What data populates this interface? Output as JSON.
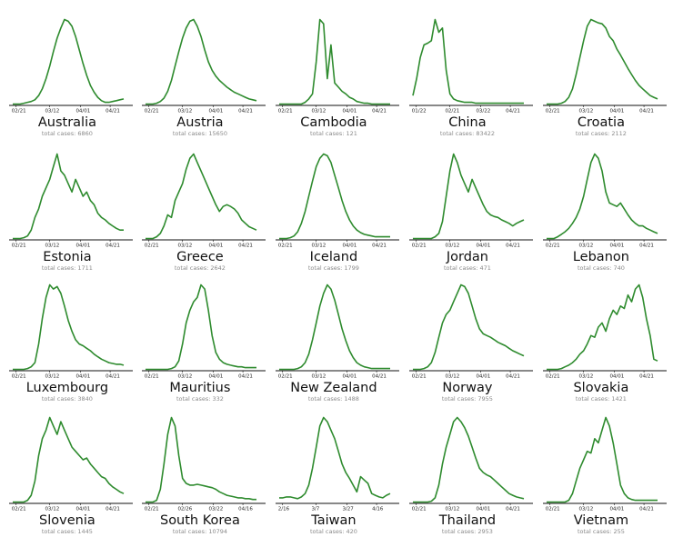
{
  "chart_data": [
    {
      "type": "line",
      "title": "Australia",
      "subtitle": "total cases: 6860",
      "x_ticks": [
        "02/21",
        "03/12",
        "04/01",
        "04/21"
      ],
      "series": [
        {
          "values": [
            0,
            0,
            0,
            1,
            2,
            3,
            5,
            10,
            18,
            30,
            45,
            62,
            78,
            90,
            100,
            98,
            92,
            80,
            64,
            48,
            34,
            22,
            14,
            8,
            4,
            2,
            2,
            3,
            4,
            5,
            6
          ]
        }
      ],
      "color": "#2e8b2e"
    },
    {
      "type": "line",
      "title": "Austria",
      "subtitle": "total cases: 15650",
      "x_ticks": [
        "02/21",
        "03/12",
        "04/01",
        "04/21"
      ],
      "series": [
        {
          "values": [
            0,
            0,
            0,
            1,
            3,
            7,
            15,
            28,
            45,
            62,
            78,
            90,
            98,
            100,
            92,
            80,
            64,
            50,
            40,
            33,
            28,
            24,
            20,
            17,
            14,
            12,
            10,
            8,
            6,
            5,
            4
          ]
        }
      ],
      "color": "#2e8b2e"
    },
    {
      "type": "line",
      "title": "Cambodia",
      "subtitle": "total cases: 121",
      "x_ticks": [
        "02/21",
        "03/12",
        "04/01",
        "04/21"
      ],
      "series": [
        {
          "values": [
            0,
            0,
            0,
            0,
            0,
            0,
            0,
            2,
            6,
            12,
            50,
            100,
            95,
            30,
            70,
            25,
            20,
            15,
            12,
            8,
            6,
            3,
            2,
            1,
            1,
            0,
            0,
            0,
            0,
            0,
            0
          ]
        }
      ],
      "color": "#2e8b2e"
    },
    {
      "type": "line",
      "title": "China",
      "subtitle": "total cases: 83422",
      "x_ticks": [
        "01/22",
        "02/21",
        "03/22",
        "04/21"
      ],
      "series": [
        {
          "values": [
            10,
            30,
            55,
            70,
            72,
            75,
            100,
            85,
            90,
            40,
            12,
            6,
            4,
            3,
            2,
            2,
            2,
            1,
            1,
            1,
            1,
            1,
            1,
            1,
            1,
            1,
            1,
            1,
            1,
            1,
            1
          ]
        }
      ],
      "color": "#2e8b2e"
    },
    {
      "type": "line",
      "title": "Croatia",
      "subtitle": "total cases: 2112",
      "x_ticks": [
        "02/21",
        "03/12",
        "04/01",
        "04/21"
      ],
      "series": [
        {
          "values": [
            0,
            0,
            0,
            0,
            1,
            3,
            8,
            18,
            35,
            55,
            75,
            92,
            100,
            98,
            96,
            95,
            90,
            80,
            75,
            65,
            58,
            50,
            42,
            35,
            28,
            22,
            18,
            14,
            10,
            8,
            6
          ]
        }
      ],
      "color": "#2e8b2e"
    },
    {
      "type": "line",
      "title": "Estonia",
      "subtitle": "total cases: 1711",
      "x_ticks": [
        "02/21",
        "03/12",
        "04/01",
        "04/21"
      ],
      "series": [
        {
          "values": [
            0,
            0,
            0,
            1,
            3,
            10,
            25,
            35,
            50,
            60,
            70,
            85,
            100,
            80,
            75,
            65,
            55,
            70,
            60,
            50,
            55,
            45,
            40,
            30,
            25,
            22,
            18,
            15,
            12,
            10,
            10
          ]
        }
      ],
      "color": "#2e8b2e"
    },
    {
      "type": "line",
      "title": "Greece",
      "subtitle": "total cases: 2642",
      "x_ticks": [
        "02/21",
        "03/12",
        "04/01",
        "04/21"
      ],
      "series": [
        {
          "values": [
            0,
            0,
            0,
            2,
            6,
            15,
            28,
            25,
            45,
            55,
            65,
            82,
            95,
            100,
            90,
            80,
            70,
            60,
            50,
            40,
            32,
            38,
            40,
            38,
            35,
            30,
            22,
            18,
            14,
            12,
            10
          ]
        }
      ],
      "color": "#2e8b2e"
    },
    {
      "type": "line",
      "title": "Iceland",
      "subtitle": "total cases: 1799",
      "x_ticks": [
        "02/21",
        "03/12",
        "04/01",
        "04/21"
      ],
      "series": [
        {
          "values": [
            0,
            0,
            0,
            1,
            3,
            8,
            18,
            32,
            50,
            68,
            85,
            95,
            100,
            98,
            90,
            75,
            60,
            45,
            32,
            22,
            15,
            10,
            7,
            5,
            4,
            3,
            2,
            2,
            2,
            2,
            2
          ]
        }
      ],
      "color": "#2e8b2e"
    },
    {
      "type": "line",
      "title": "Jordan",
      "subtitle": "total cases: 471",
      "x_ticks": [
        "02/21",
        "03/12",
        "04/01",
        "04/21"
      ],
      "series": [
        {
          "values": [
            0,
            0,
            0,
            0,
            0,
            0,
            2,
            6,
            20,
            50,
            80,
            100,
            90,
            75,
            65,
            55,
            70,
            60,
            50,
            40,
            32,
            28,
            26,
            25,
            22,
            20,
            18,
            15,
            18,
            20,
            22
          ]
        }
      ],
      "color": "#2e8b2e"
    },
    {
      "type": "line",
      "title": "Lebanon",
      "subtitle": "total cases: 740",
      "x_ticks": [
        "02/21",
        "03/12",
        "04/01",
        "04/21"
      ],
      "series": [
        {
          "values": [
            0,
            0,
            0,
            2,
            5,
            8,
            12,
            18,
            25,
            35,
            50,
            70,
            90,
            100,
            95,
            80,
            55,
            42,
            40,
            38,
            42,
            35,
            28,
            22,
            18,
            15,
            15,
            12,
            10,
            8,
            6
          ]
        }
      ],
      "color": "#2e8b2e"
    },
    {
      "type": "line",
      "title": "Luxembourg",
      "subtitle": "total cases: 3840",
      "x_ticks": [
        "02/21",
        "03/12",
        "04/01",
        "04/21"
      ],
      "series": [
        {
          "values": [
            0,
            0,
            0,
            0,
            1,
            3,
            8,
            30,
            60,
            85,
            100,
            95,
            98,
            90,
            75,
            58,
            45,
            35,
            30,
            28,
            25,
            22,
            18,
            15,
            12,
            10,
            8,
            7,
            6,
            6,
            5
          ]
        }
      ],
      "color": "#2e8b2e"
    },
    {
      "type": "line",
      "title": "Mauritius",
      "subtitle": "total cases: 332",
      "x_ticks": [
        "02/21",
        "03/12",
        "04/01",
        "04/21"
      ],
      "series": [
        {
          "values": [
            0,
            0,
            0,
            0,
            0,
            0,
            0,
            1,
            3,
            10,
            30,
            55,
            70,
            80,
            85,
            100,
            95,
            70,
            40,
            20,
            12,
            8,
            6,
            5,
            4,
            3,
            3,
            2,
            2,
            2,
            2
          ]
        }
      ],
      "color": "#2e8b2e"
    },
    {
      "type": "line",
      "title": "New Zealand",
      "subtitle": "total cases: 1488",
      "x_ticks": [
        "02/21",
        "03/12",
        "04/01",
        "04/21"
      ],
      "series": [
        {
          "values": [
            0,
            0,
            0,
            0,
            0,
            1,
            3,
            8,
            18,
            35,
            55,
            75,
            90,
            100,
            95,
            82,
            65,
            48,
            34,
            22,
            14,
            8,
            5,
            3,
            2,
            1,
            1,
            1,
            1,
            1,
            1
          ]
        }
      ],
      "color": "#2e8b2e"
    },
    {
      "type": "line",
      "title": "Norway",
      "subtitle": "total cases: 7955",
      "x_ticks": [
        "02/21",
        "03/12",
        "04/01",
        "04/21"
      ],
      "series": [
        {
          "values": [
            0,
            0,
            0,
            1,
            3,
            8,
            20,
            38,
            55,
            65,
            70,
            80,
            90,
            100,
            98,
            90,
            75,
            60,
            48,
            42,
            40,
            38,
            35,
            32,
            30,
            28,
            25,
            22,
            20,
            18,
            16
          ]
        }
      ],
      "color": "#2e8b2e"
    },
    {
      "type": "line",
      "title": "Slovakia",
      "subtitle": "total cases: 1421",
      "x_ticks": [
        "02/21",
        "03/12",
        "04/01",
        "04/21"
      ],
      "series": [
        {
          "values": [
            0,
            0,
            0,
            0,
            1,
            3,
            5,
            8,
            12,
            18,
            22,
            30,
            40,
            38,
            50,
            55,
            45,
            60,
            70,
            65,
            75,
            72,
            88,
            80,
            95,
            100,
            85,
            60,
            40,
            12,
            10
          ]
        }
      ],
      "color": "#2e8b2e"
    },
    {
      "type": "line",
      "title": "Slovenia",
      "subtitle": "total cases: 1445",
      "x_ticks": [
        "02/21",
        "03/12",
        "04/01",
        "04/21"
      ],
      "series": [
        {
          "values": [
            0,
            0,
            0,
            0,
            2,
            8,
            25,
            55,
            75,
            85,
            100,
            90,
            80,
            95,
            85,
            75,
            65,
            60,
            55,
            50,
            52,
            45,
            40,
            35,
            30,
            28,
            22,
            18,
            15,
            12,
            10
          ]
        }
      ],
      "color": "#2e8b2e"
    },
    {
      "type": "line",
      "title": "South Korea",
      "subtitle": "total cases: 10794",
      "x_ticks": [
        "02/21",
        "02/26",
        "03/22",
        "04/16"
      ],
      "series": [
        {
          "values": [
            0,
            0,
            0,
            2,
            15,
            45,
            80,
            100,
            90,
            55,
            28,
            22,
            20,
            20,
            21,
            20,
            19,
            18,
            17,
            15,
            12,
            10,
            8,
            7,
            6,
            5,
            5,
            4,
            4,
            3,
            3
          ]
        }
      ],
      "color": "#2e8b2e"
    },
    {
      "type": "line",
      "title": "Taiwan",
      "subtitle": "total cases: 420",
      "x_ticks": [
        "2/16",
        "3/7",
        "3/27",
        "4/16"
      ],
      "series": [
        {
          "values": [
            5,
            5,
            6,
            6,
            5,
            4,
            6,
            10,
            20,
            40,
            65,
            90,
            100,
            95,
            85,
            75,
            60,
            45,
            35,
            28,
            20,
            12,
            30,
            26,
            22,
            10,
            8,
            6,
            5,
            8,
            10
          ]
        }
      ],
      "color": "#2e8b2e"
    },
    {
      "type": "line",
      "title": "Thailand",
      "subtitle": "total cases: 2953",
      "x_ticks": [
        "02/21",
        "03/12",
        "04/01",
        "04/21"
      ],
      "series": [
        {
          "values": [
            0,
            0,
            0,
            0,
            0,
            1,
            5,
            20,
            45,
            65,
            80,
            95,
            100,
            95,
            88,
            78,
            65,
            52,
            40,
            35,
            32,
            30,
            26,
            22,
            18,
            14,
            10,
            8,
            6,
            5,
            4
          ]
        }
      ],
      "color": "#2e8b2e"
    },
    {
      "type": "line",
      "title": "Vietnam",
      "subtitle": "total cases: 255",
      "x_ticks": [
        "02/21",
        "03/12",
        "04/01",
        "04/21"
      ],
      "series": [
        {
          "values": [
            0,
            0,
            0,
            0,
            0,
            0,
            2,
            10,
            25,
            40,
            50,
            60,
            58,
            75,
            70,
            85,
            100,
            90,
            70,
            45,
            20,
            10,
            5,
            3,
            2,
            2,
            2,
            2,
            2,
            2,
            2
          ]
        }
      ],
      "color": "#2e8b2e"
    }
  ]
}
